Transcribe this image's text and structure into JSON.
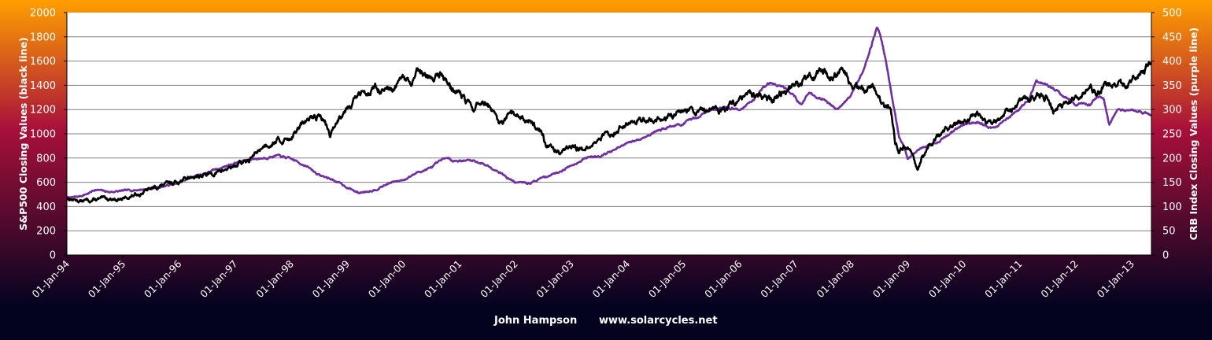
{
  "chart_data": {
    "type": "line",
    "title": "",
    "xlabel": "",
    "ylabel_left": "S&P500  Closing  Values (black line)",
    "ylabel_right": "CRB Index Closing Values (purple line)",
    "footer": {
      "author": "John Hampson",
      "website": "www.solarcycles.net"
    },
    "x_ticks": [
      "01-Jan-94",
      "01-Jan-95",
      "01-Jan-96",
      "01-Jan-97",
      "01-Jan-98",
      "01-Jan-99",
      "01-Jan-00",
      "01-Jan-01",
      "01-Jan-02",
      "01-Jan-03",
      "01-Jan-04",
      "01-Jan-05",
      "01-Jan-06",
      "01-Jan-07",
      "01-Jan-08",
      "01-Jan-09",
      "01-Jan-10",
      "01-Jan-11",
      "01-Jan-12",
      "01-Jan-13"
    ],
    "x_range": [
      1994.0,
      2013.35
    ],
    "ylim_left": [
      0,
      2000
    ],
    "yticks_left": [
      0,
      200,
      400,
      600,
      800,
      1000,
      1200,
      1400,
      1600,
      1800,
      2000
    ],
    "ylim_right": [
      0,
      500
    ],
    "yticks_right": [
      0,
      50,
      100,
      150,
      200,
      250,
      300,
      350,
      400,
      450,
      500
    ],
    "grid": true,
    "colors": {
      "sp500": "#000000",
      "crb": "#7030a0",
      "plot_bg": "#ffffff",
      "gridline": "#808080",
      "bg_top": "#ff9f00",
      "bg_mid": "#a8103a",
      "bg_bottom": "#030320"
    },
    "series": [
      {
        "name": "S&P500",
        "axis": "left",
        "x": [
          1994.0,
          1994.1,
          1994.25,
          1994.5,
          1994.75,
          1995.0,
          1995.25,
          1995.5,
          1995.75,
          1996.0,
          1996.25,
          1996.5,
          1996.75,
          1997.0,
          1997.25,
          1997.5,
          1997.75,
          1997.83,
          1998.0,
          1998.25,
          1998.5,
          1998.6,
          1998.7,
          1998.83,
          1999.0,
          1999.25,
          1999.5,
          1999.8,
          2000.0,
          2000.15,
          2000.25,
          2000.5,
          2000.7,
          2000.85,
          2001.0,
          2001.15,
          2001.25,
          2001.4,
          2001.5,
          2001.7,
          2001.75,
          2001.9,
          2002.0,
          2002.25,
          2002.5,
          2002.55,
          2002.65,
          2002.8,
          2002.9,
          2003.0,
          2003.2,
          2003.25,
          2003.5,
          2003.75,
          2004.0,
          2004.25,
          2004.5,
          2004.75,
          2005.0,
          2005.25,
          2005.5,
          2005.75,
          2006.0,
          2006.25,
          2006.45,
          2006.6,
          2006.75,
          2007.0,
          2007.25,
          2007.5,
          2007.65,
          2007.78,
          2007.9,
          2008.0,
          2008.2,
          2008.4,
          2008.5,
          2008.6,
          2008.7,
          2008.78,
          2008.85,
          2008.92,
          2009.0,
          2009.1,
          2009.18,
          2009.25,
          2009.5,
          2009.75,
          2010.0,
          2010.25,
          2010.4,
          2010.5,
          2010.65,
          2010.75,
          2011.0,
          2011.3,
          2011.5,
          2011.6,
          2011.75,
          2011.85,
          2012.0,
          2012.25,
          2012.45,
          2012.5,
          2012.75,
          2012.9,
          2013.0,
          2013.2,
          2013.35
        ],
        "values": [
          470,
          460,
          445,
          455,
          465,
          460,
          500,
          545,
          580,
          610,
          650,
          660,
          690,
          740,
          780,
          900,
          950,
          940,
          975,
          1100,
          1150,
          1100,
          980,
          1120,
          1230,
          1330,
          1380,
          1330,
          1460,
          1400,
          1500,
          1460,
          1500,
          1380,
          1340,
          1250,
          1200,
          1270,
          1250,
          1080,
          1070,
          1150,
          1150,
          1120,
          1000,
          880,
          900,
          830,
          900,
          880,
          880,
          850,
          960,
          1010,
          1110,
          1120,
          1120,
          1140,
          1200,
          1180,
          1220,
          1200,
          1280,
          1310,
          1280,
          1250,
          1330,
          1410,
          1460,
          1510,
          1470,
          1540,
          1500,
          1400,
          1380,
          1380,
          1300,
          1250,
          1200,
          920,
          860,
          900,
          880,
          800,
          700,
          800,
          950,
          1050,
          1110,
          1170,
          1080,
          1070,
          1120,
          1170,
          1260,
          1330,
          1300,
          1200,
          1220,
          1250,
          1280,
          1380,
          1330,
          1400,
          1420,
          1400,
          1450,
          1540,
          1580
        ]
      },
      {
        "name": "CRB Index",
        "axis": "right",
        "x": [
          1994.0,
          1994.2,
          1994.4,
          1994.5,
          1994.75,
          1995.0,
          1995.5,
          1996.0,
          1996.25,
          1996.5,
          1996.75,
          1997.0,
          1997.3,
          1997.5,
          1997.75,
          1998.0,
          1998.25,
          1998.5,
          1998.75,
          1999.0,
          1999.2,
          1999.5,
          1999.75,
          2000.0,
          2000.25,
          2000.5,
          2000.75,
          2000.9,
          2001.0,
          2001.25,
          2001.5,
          2001.75,
          2001.85,
          2002.0,
          2002.25,
          2002.5,
          2002.75,
          2003.0,
          2003.25,
          2003.5,
          2003.75,
          2004.0,
          2004.25,
          2004.5,
          2004.75,
          2005.0,
          2005.25,
          2005.5,
          2005.75,
          2006.0,
          2006.25,
          2006.35,
          2006.5,
          2006.75,
          2007.0,
          2007.1,
          2007.25,
          2007.5,
          2007.75,
          2008.0,
          2008.2,
          2008.35,
          2008.45,
          2008.5,
          2008.6,
          2008.75,
          2008.85,
          2008.95,
          2009.0,
          2009.1,
          2009.25,
          2009.5,
          2009.75,
          2010.0,
          2010.25,
          2010.5,
          2010.6,
          2010.75,
          2011.0,
          2011.15,
          2011.3,
          2011.5,
          2011.75,
          2011.9,
          2012.0,
          2012.25,
          2012.4,
          2012.5,
          2012.6,
          2012.75,
          2013.0,
          2013.2,
          2013.35
        ],
        "values": [
          118,
          120,
          128,
          135,
          130,
          132,
          137,
          148,
          162,
          170,
          180,
          190,
          198,
          200,
          205,
          198,
          185,
          165,
          155,
          140,
          128,
          135,
          148,
          155,
          170,
          180,
          200,
          195,
          195,
          195,
          185,
          170,
          160,
          150,
          148,
          160,
          170,
          185,
          200,
          205,
          215,
          230,
          240,
          255,
          265,
          270,
          285,
          300,
          305,
          300,
          320,
          335,
          355,
          350,
          325,
          310,
          335,
          320,
          300,
          330,
          380,
          430,
          470,
          460,
          410,
          310,
          240,
          220,
          200,
          210,
          220,
          230,
          250,
          270,
          275,
          260,
          265,
          280,
          300,
          320,
          360,
          350,
          330,
          320,
          310,
          310,
          330,
          320,
          270,
          300,
          300,
          295,
          290
        ]
      }
    ]
  }
}
